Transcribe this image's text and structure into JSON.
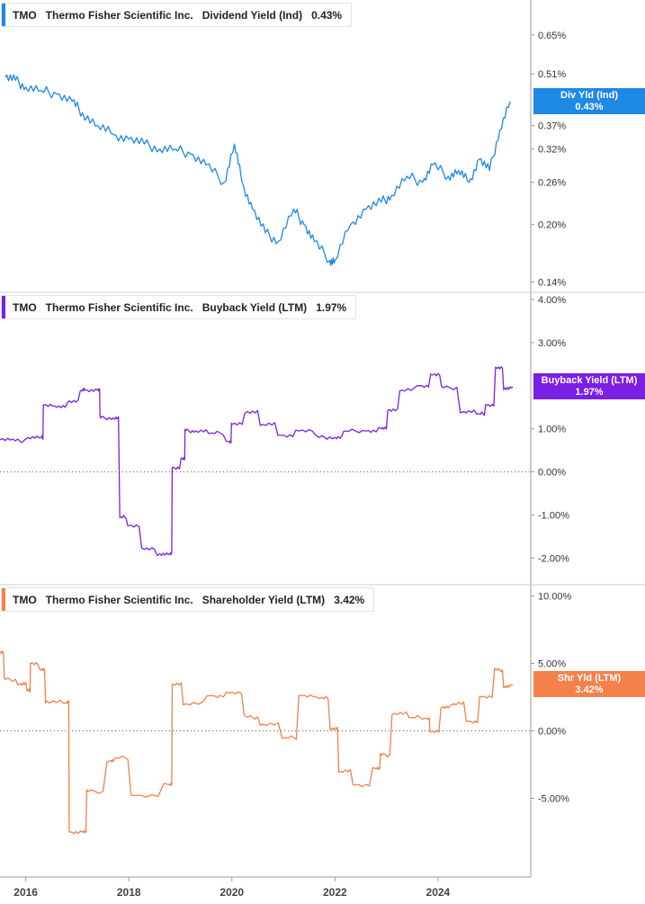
{
  "panels": [
    {
      "ticker": "TMO",
      "company": "Thermo Fisher Scientific Inc.",
      "metric": "Dividend Yield (Ind)",
      "value": "0.43%",
      "color": "#1e88e5",
      "tag_line1": "Div Yld (Ind)",
      "tag_line2": "0.43%"
    },
    {
      "ticker": "TMO",
      "company": "Thermo Fisher Scientific Inc.",
      "metric": "Buyback Yield (LTM)",
      "value": "1.97%",
      "color": "#7b1fe4",
      "tag_line1": "Buyback Yield (LTM)",
      "tag_line2": "1.97%"
    },
    {
      "ticker": "TMO",
      "company": "Thermo Fisher Scientific Inc.",
      "metric": "Shareholder Yield (LTM)",
      "value": "3.42%",
      "color": "#f4804a",
      "tag_line1": "Shr Yld (LTM)",
      "tag_line2": "3.42%"
    }
  ],
  "chart_data": [
    {
      "type": "line",
      "scale": "log",
      "title": "Dividend Yield (Ind)",
      "y_ticks": [
        "0.65%",
        "0.51%",
        "0.37%",
        "0.32%",
        "0.26%",
        "0.20%",
        "0.14%"
      ],
      "y_tick_values": [
        0.65,
        0.51,
        0.37,
        0.32,
        0.26,
        0.2,
        0.14
      ],
      "ylim": [
        0.135,
        0.73
      ],
      "x": [
        2015.6,
        2015.8,
        2016.0,
        2016.3,
        2016.6,
        2016.9,
        2017.1,
        2017.4,
        2017.7,
        2018.0,
        2018.3,
        2018.6,
        2018.9,
        2019.2,
        2019.5,
        2019.85,
        2020.05,
        2020.2,
        2020.4,
        2020.65,
        2020.9,
        2021.2,
        2021.4,
        2021.6,
        2021.9,
        2022.0,
        2022.3,
        2022.6,
        2022.9,
        2023.1,
        2023.4,
        2023.7,
        2023.9,
        2024.2,
        2024.4,
        2024.6,
        2024.8,
        2025.0,
        2025.2,
        2025.4
      ],
      "y": [
        0.5,
        0.49,
        0.47,
        0.46,
        0.45,
        0.43,
        0.4,
        0.37,
        0.35,
        0.34,
        0.33,
        0.32,
        0.32,
        0.31,
        0.29,
        0.26,
        0.33,
        0.26,
        0.22,
        0.19,
        0.18,
        0.22,
        0.2,
        0.18,
        0.16,
        0.16,
        0.2,
        0.22,
        0.23,
        0.24,
        0.27,
        0.26,
        0.29,
        0.27,
        0.28,
        0.26,
        0.3,
        0.28,
        0.36,
        0.43
      ]
    },
    {
      "type": "line",
      "title": "Buyback Yield (LTM)",
      "y_ticks": [
        "4.00%",
        "3.00%",
        "1.00%",
        "0.00%",
        "-1.00%",
        "-2.00%"
      ],
      "y_tick_values": [
        4.0,
        3.0,
        1.0,
        0.0,
        -1.0,
        -2.0
      ],
      "ylim": [
        -2.2,
        4.0
      ],
      "x": [
        2015.5,
        2015.8,
        2016.05,
        2016.3,
        2016.35,
        2016.6,
        2016.85,
        2017.1,
        2017.15,
        2017.4,
        2017.45,
        2017.7,
        2017.85,
        2018.0,
        2018.3,
        2018.6,
        2018.8,
        2018.85,
        2019.05,
        2019.1,
        2019.3,
        2019.6,
        2019.95,
        2020.0,
        2020.3,
        2020.6,
        2020.95,
        2021.3,
        2021.7,
        2022.0,
        2022.2,
        2022.6,
        2022.9,
        2023.05,
        2023.3,
        2023.65,
        2023.9,
        2024.1,
        2024.5,
        2024.8,
        2024.95,
        2025.15,
        2025.3,
        2025.45
      ],
      "y": [
        0.75,
        0.72,
        0.8,
        0.8,
        1.55,
        1.5,
        1.65,
        1.9,
        1.9,
        1.9,
        1.25,
        1.25,
        -1.05,
        -1.25,
        -1.8,
        -1.9,
        -1.9,
        0.1,
        0.3,
        0.95,
        0.95,
        0.9,
        0.7,
        1.1,
        1.4,
        1.1,
        0.85,
        0.95,
        0.8,
        0.8,
        0.95,
        0.95,
        1.0,
        1.45,
        1.9,
        2.0,
        2.25,
        1.95,
        1.4,
        1.35,
        1.55,
        2.4,
        1.95,
        1.97
      ]
    },
    {
      "type": "line",
      "title": "Shareholder Yield (LTM)",
      "y_ticks": [
        "10.00%",
        "5.00%",
        "0.00%",
        "-5.00%"
      ],
      "y_tick_values": [
        10.0,
        5.0,
        0.0,
        -5.0
      ],
      "ylim": [
        -9.5,
        10.5
      ],
      "x": [
        2015.5,
        2015.6,
        2015.9,
        2016.05,
        2016.1,
        2016.3,
        2016.4,
        2016.8,
        2016.85,
        2017.1,
        2017.2,
        2017.65,
        2017.75,
        2018.1,
        2018.8,
        2018.85,
        2019.1,
        2019.6,
        2019.95,
        2020.3,
        2020.6,
        2021.05,
        2021.35,
        2021.7,
        2021.95,
        2022.1,
        2022.4,
        2022.8,
        2022.9,
        2023.15,
        2023.5,
        2023.8,
        2023.85,
        2024.1,
        2024.3,
        2024.6,
        2024.85,
        2025.15,
        2025.3,
        2025.45
      ],
      "y": [
        5.8,
        3.8,
        3.5,
        3.0,
        5.0,
        4.5,
        2.2,
        2.1,
        -7.5,
        -7.5,
        -4.5,
        -2.2,
        -2.0,
        -4.8,
        -4.0,
        3.5,
        2.0,
        2.6,
        2.8,
        1.0,
        0.5,
        -0.5,
        2.6,
        2.4,
        0.2,
        -3.0,
        -4.0,
        -2.8,
        -1.8,
        1.3,
        1.0,
        0.9,
        -0.1,
        1.8,
        2.0,
        0.7,
        2.5,
        4.5,
        3.3,
        3.42
      ]
    }
  ],
  "x_axis": {
    "ticks": [
      "2016",
      "2018",
      "2020",
      "2022",
      "2024"
    ],
    "tick_values": [
      2016,
      2018,
      2020,
      2022,
      2024
    ],
    "xlim": [
      2015.5,
      2025.8
    ]
  }
}
